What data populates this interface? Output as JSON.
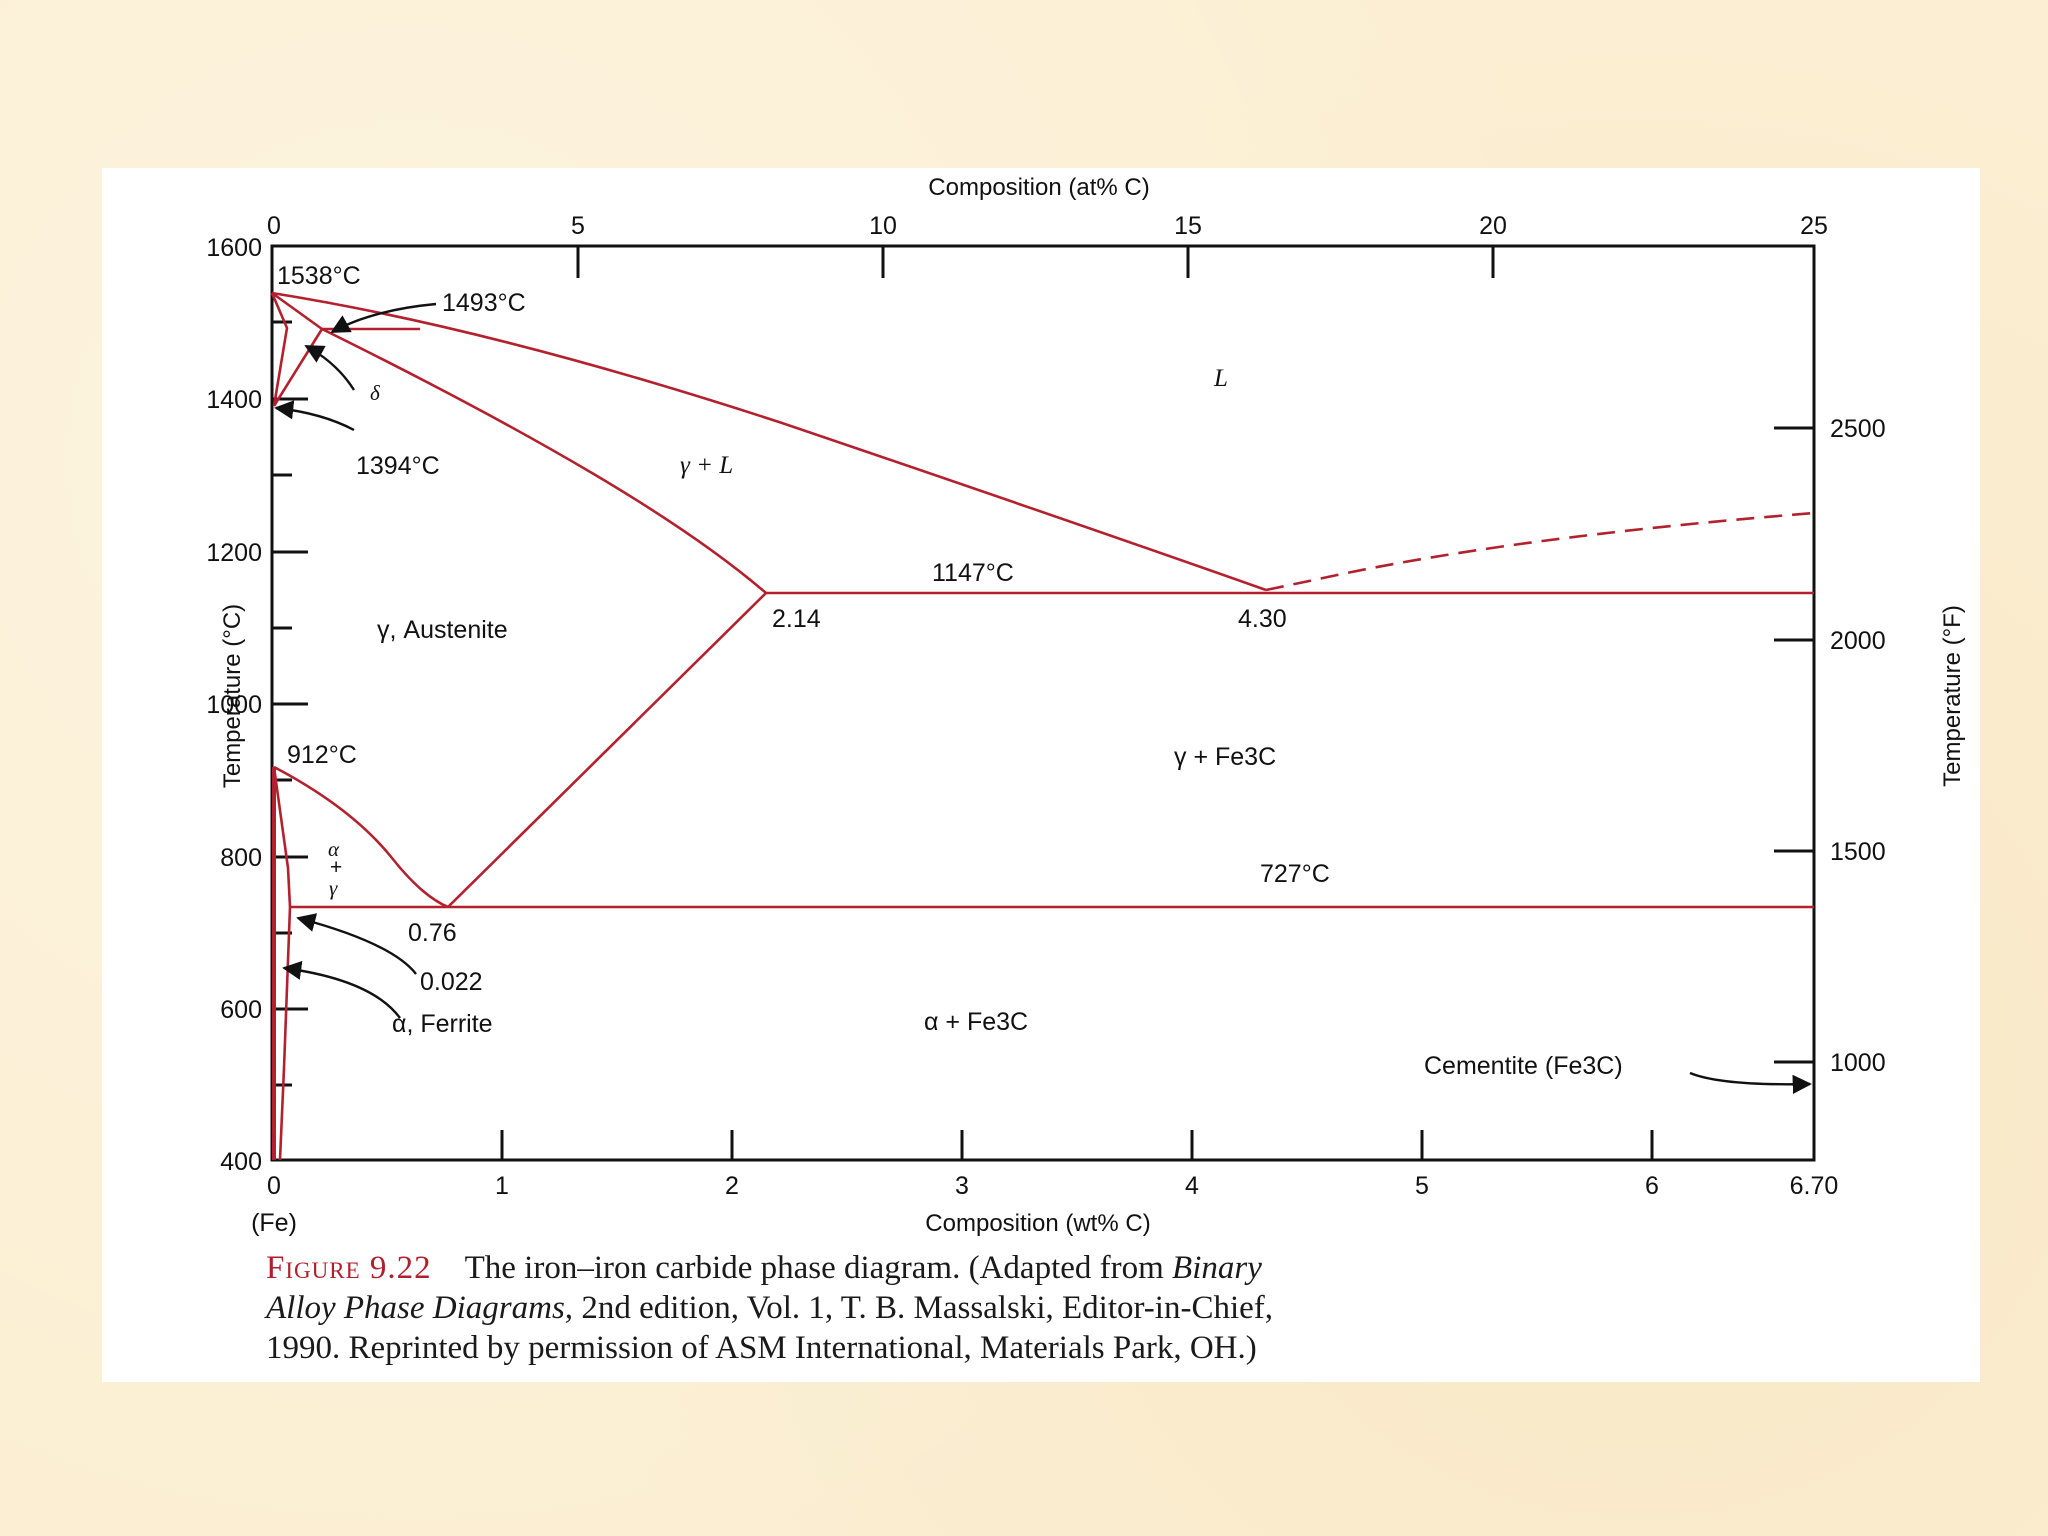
{
  "diagram": {
    "axes": {
      "top_label": "Composition (at% C)",
      "top_ticks": [
        "0",
        "5",
        "10",
        "15",
        "20",
        "25"
      ],
      "bottom_label": "Composition (wt% C)",
      "bottom_ticks": [
        "0",
        "1",
        "2",
        "3",
        "4",
        "5",
        "6",
        "6.70"
      ],
      "bottom_sub": "(Fe)",
      "left_label": "Temperature (°C)",
      "left_ticks": [
        "400",
        "600",
        "800",
        "1000",
        "1200",
        "1400",
        "1600"
      ],
      "right_label": "Temperature (°F)",
      "right_ticks": [
        "1000",
        "1500",
        "2000",
        "2500"
      ]
    },
    "annotations": {
      "t1538": "1538°C",
      "t1493": "1493°C",
      "t1394": "1394°C",
      "t1147": "1147°C",
      "t912": "912°C",
      "t727": "727°C",
      "c214": "2.14",
      "c430": "4.30",
      "c076": "0.76",
      "c0022": "0.022"
    },
    "regions": {
      "liquid": "L",
      "gamma_liquid": "γ + L",
      "austenite": "γ, Austenite",
      "gamma_cementite": "γ + Fe3C",
      "alpha_cementite": "α + Fe3C",
      "ferrite": "α, Ferrite",
      "delta": "δ",
      "alpha_gamma": [
        "α",
        "+",
        "γ"
      ],
      "cementite": "Cementite (Fe3C)"
    },
    "colors": {
      "phase_lines": "#b3212e",
      "axes": "#111111"
    }
  },
  "caption": {
    "figure_label": "Figure 9.22",
    "line1_text": "The iron–iron carbide phase diagram. (Adapted from ",
    "line1_italic": "Binary",
    "line2_italic": "Alloy Phase Diagrams,",
    "line2_text": " 2nd edition, Vol. 1, T. B. Massalski, Editor-in-Chief,",
    "line3_text": "1990. Reprinted by permission of ASM International, Materials Park, OH.)"
  }
}
